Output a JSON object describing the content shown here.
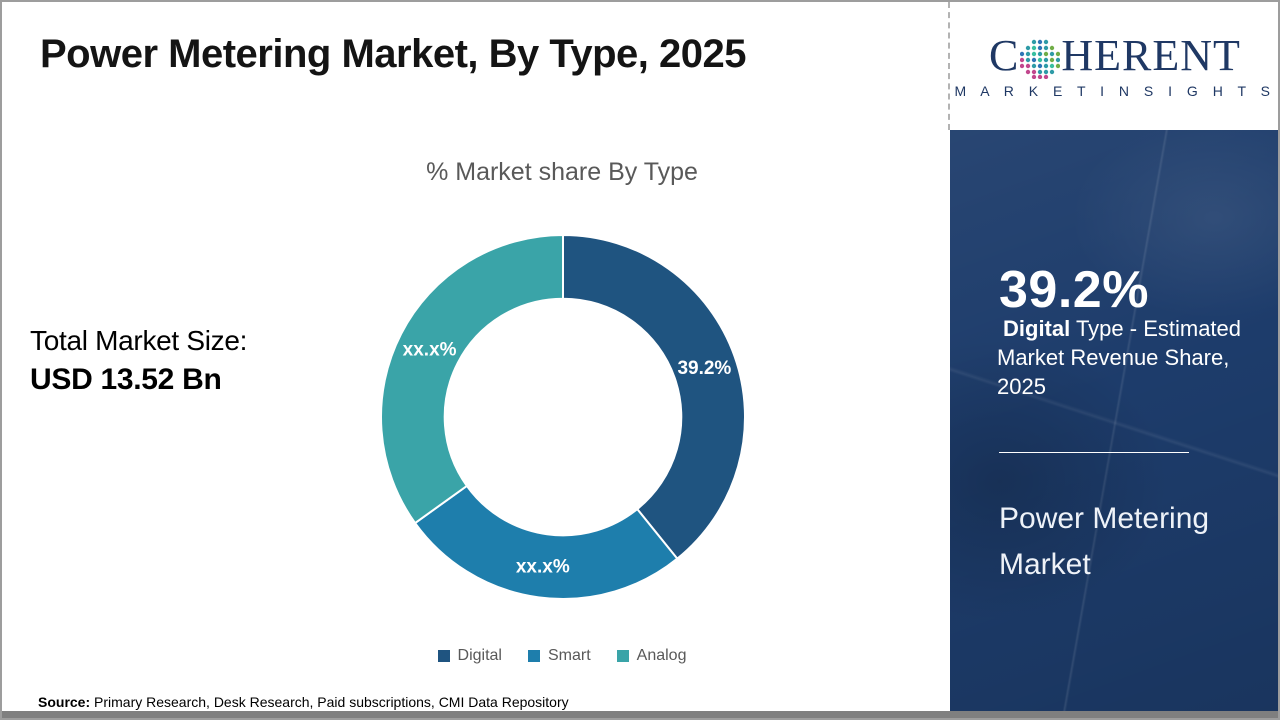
{
  "page": {
    "title": "Power Metering Market, By Type, 2025",
    "source_label": "Source:",
    "source_text": " Primary Research, Desk Research, Paid subscriptions, CMI Data Repository"
  },
  "logo": {
    "brand_prefix": "C",
    "brand_suffix": "HERENT",
    "tagline": "M A R K E T   I N S I G H T S",
    "globe_icon": "dotted-globe",
    "navy": "#1F3864"
  },
  "left_panel": {
    "total_label": "Total Market Size:",
    "total_value": "USD 13.52 Bn"
  },
  "chart_data": {
    "type": "pie",
    "subtype": "donut",
    "title": "% Market share By Type",
    "categories": [
      "Digital",
      "Smart",
      "Analog"
    ],
    "values": [
      39.2,
      25.9,
      34.9
    ],
    "slice_labels": [
      "39.2%",
      "xx.x%",
      "xx.x%"
    ],
    "colors": [
      "#1F5480",
      "#1E7EAC",
      "#3AA4A8"
    ],
    "start_angle_deg": 0,
    "direction": "clockwise",
    "hole_ratio": 0.65,
    "legend_position": "bottom",
    "slice_label_color": "#ffffff"
  },
  "sidebar": {
    "stat_value": "39.2%",
    "stat_bold": "Digital",
    "stat_rest": " Type - Estimated Market Revenue Share, 2025",
    "market_name": "Power Metering Market",
    "bg_color": "#1D3C6B"
  }
}
